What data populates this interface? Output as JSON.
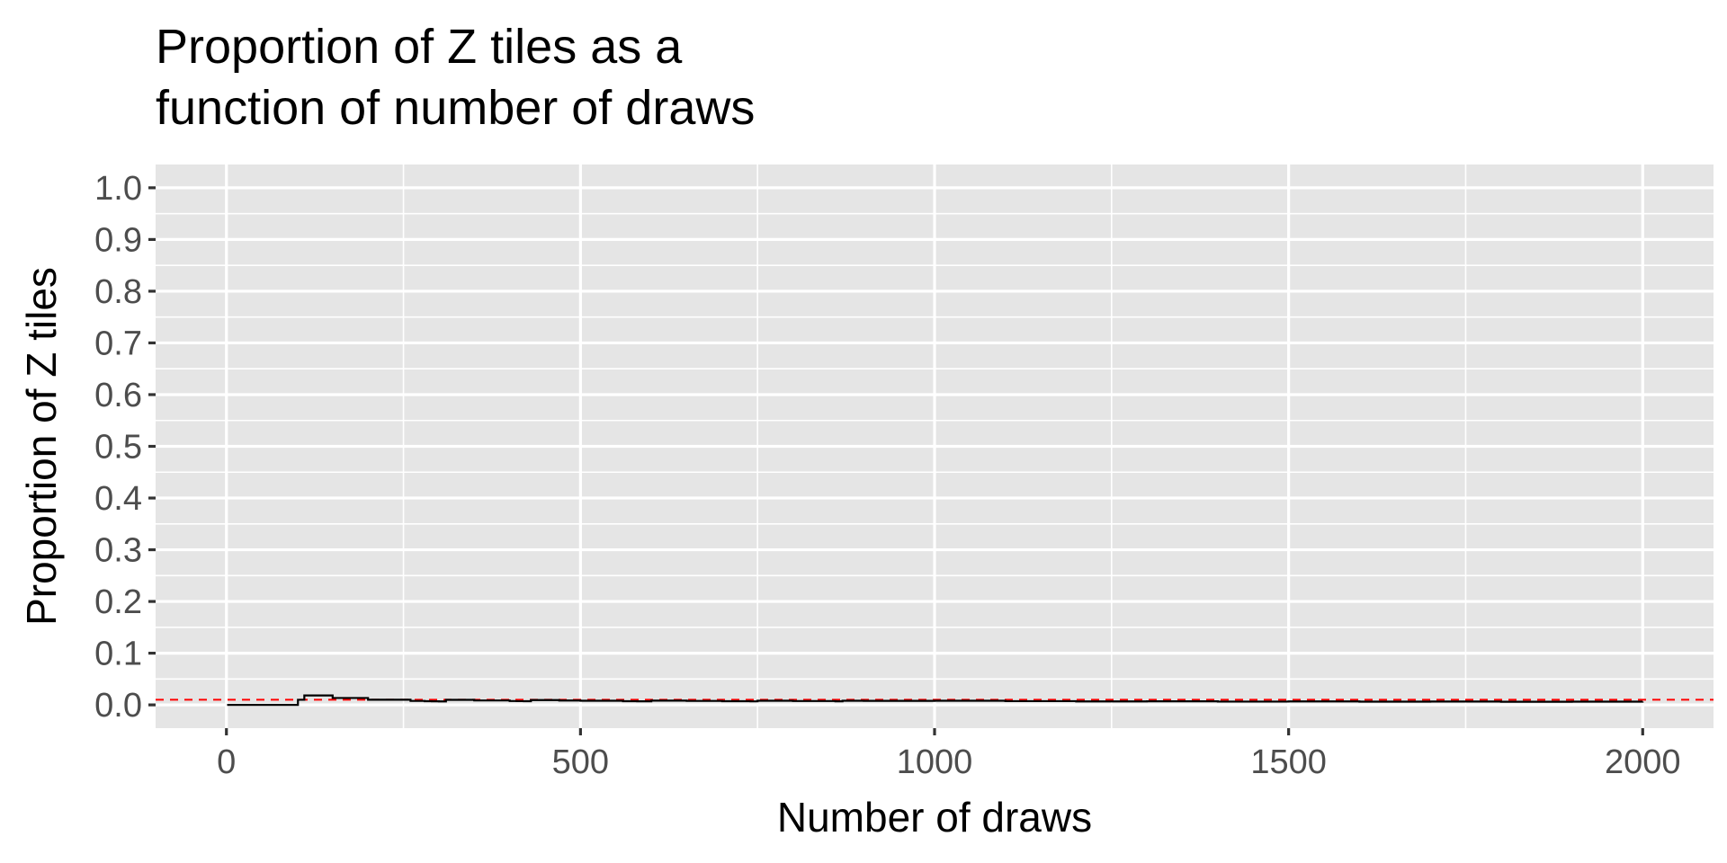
{
  "chart_data": {
    "type": "line",
    "title_lines": [
      "Proportion of Z tiles as a",
      "function of number of draws"
    ],
    "xlabel": "Number of draws",
    "ylabel": "Proportion of Z tiles",
    "xlim": [
      -100,
      2100
    ],
    "ylim": [
      -0.045,
      1.045
    ],
    "x_ticks": [
      0,
      500,
      1000,
      1500,
      2000
    ],
    "x_tick_labels": [
      "0",
      "500",
      "1000",
      "1500",
      "2000"
    ],
    "y_ticks": [
      0.0,
      0.1,
      0.2,
      0.3,
      0.4,
      0.5,
      0.6,
      0.7,
      0.8,
      0.9,
      1.0
    ],
    "y_tick_labels": [
      "0.0",
      "0.1",
      "0.2",
      "0.3",
      "0.4",
      "0.5",
      "0.6",
      "0.7",
      "0.8",
      "0.9",
      "1.0"
    ],
    "grid": true,
    "series": [
      {
        "color": "#000000",
        "x": [
          1,
          100,
          101,
          110,
          150,
          200,
          260,
          280,
          290,
          300,
          310,
          350,
          400,
          410,
          420,
          430,
          470,
          500,
          560,
          580,
          600,
          650,
          700,
          740,
          750,
          800,
          860,
          870,
          900,
          1000,
          1100,
          1200,
          1300,
          1400,
          1500,
          1600,
          1700,
          1800,
          1900,
          2000
        ],
        "y": [
          0.0,
          0.0,
          0.0099,
          0.0182,
          0.0133,
          0.01,
          0.0077,
          0.0071,
          0.0069,
          0.0067,
          0.0097,
          0.0086,
          0.0075,
          0.0073,
          0.0071,
          0.0093,
          0.0085,
          0.008,
          0.0071,
          0.0069,
          0.0083,
          0.0077,
          0.0071,
          0.0068,
          0.008,
          0.0075,
          0.007,
          0.008,
          0.0078,
          0.008,
          0.0073,
          0.0067,
          0.0069,
          0.0064,
          0.0067,
          0.0063,
          0.0065,
          0.0061,
          0.0063,
          0.0065
        ]
      }
    ],
    "reference_line": {
      "y": 0.01,
      "color": "#ff0000",
      "style": "dashed"
    },
    "colors": {
      "panel": "#e5e5e5",
      "grid": "#ffffff",
      "tick_text": "#4d4d4d"
    }
  }
}
